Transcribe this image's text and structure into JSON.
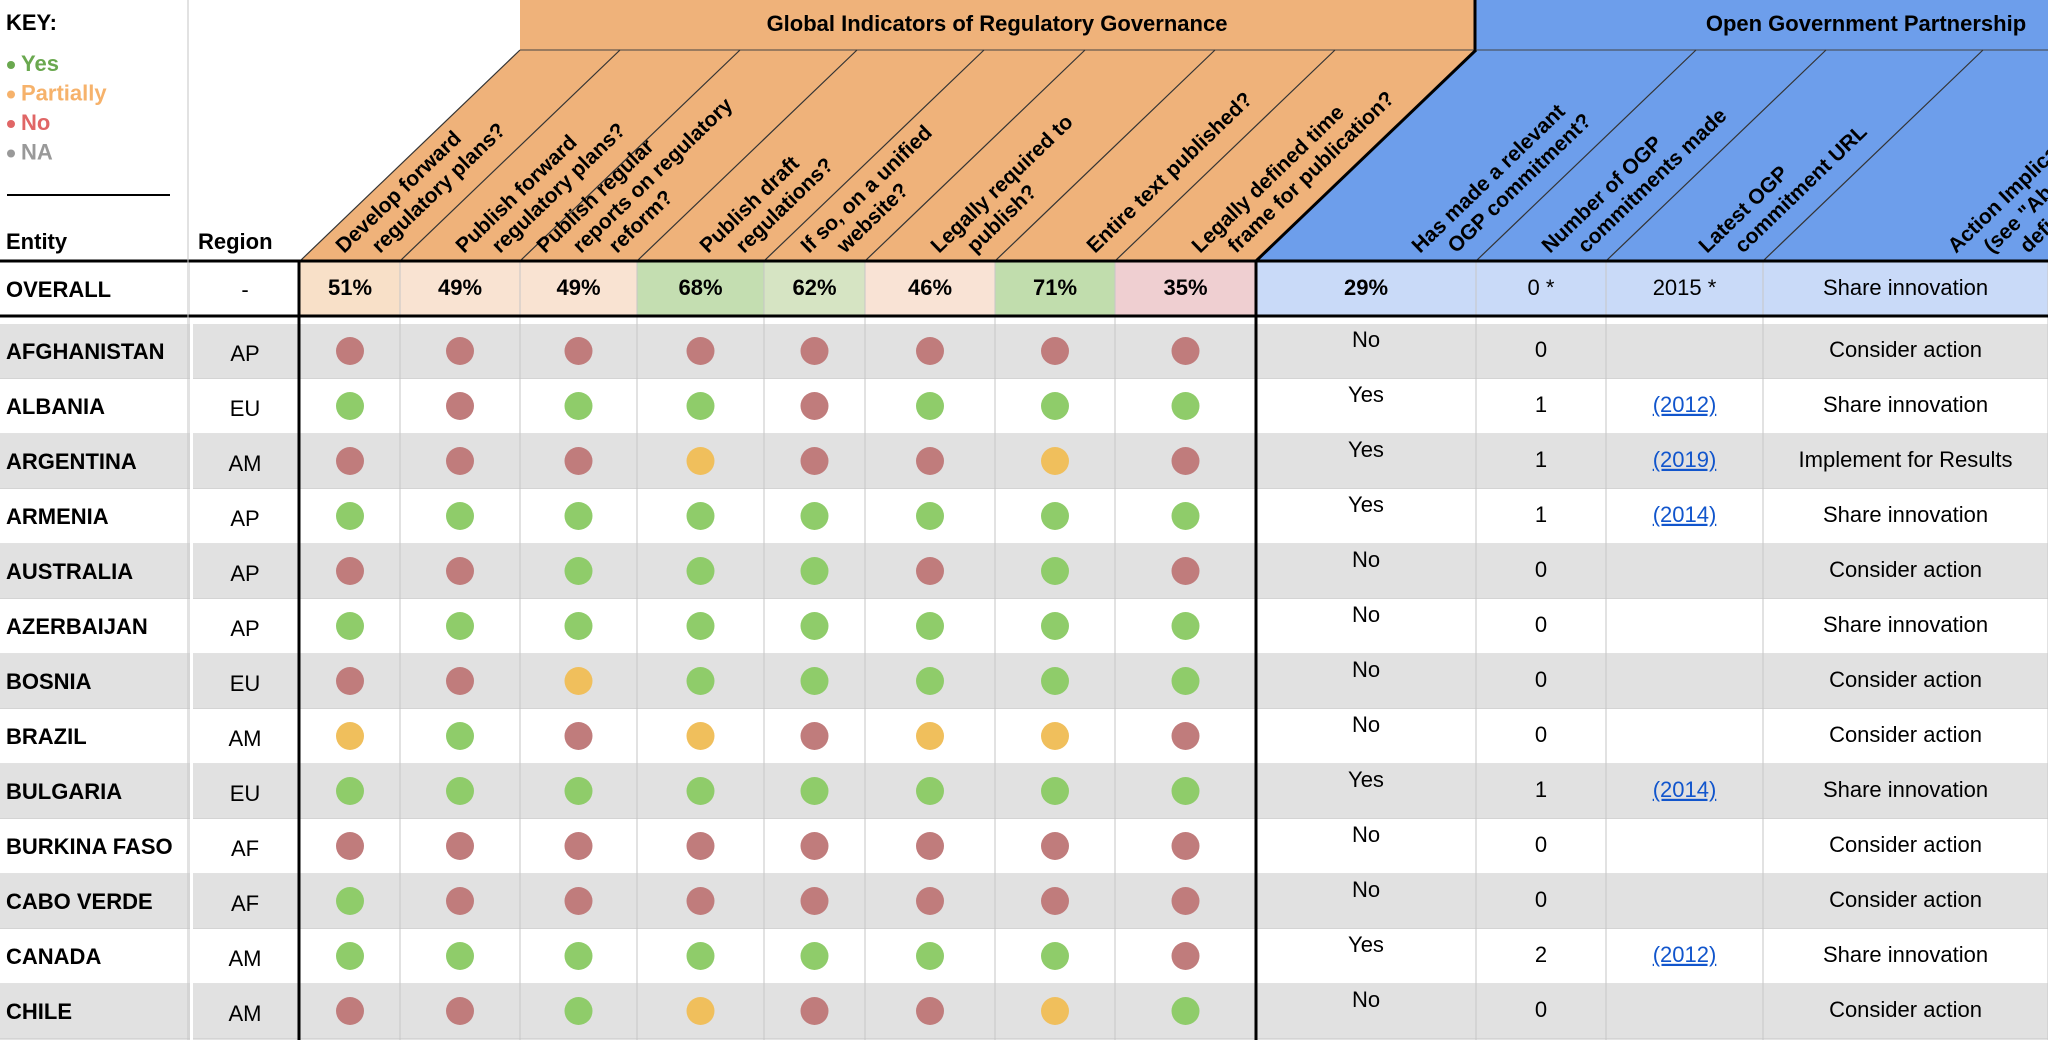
{
  "key": {
    "title": "KEY:",
    "items": [
      "Yes",
      "Partially",
      "No",
      "NA"
    ]
  },
  "status_colors": {
    "Yes": "#8fcc6a",
    "Partially": "#f0bf5c",
    "No": "#c07c7c"
  },
  "groups": [
    "Global Indicators of Regulatory Governance",
    "Open Government Partnership"
  ],
  "headers": {
    "entity": "Entity",
    "region": "Region",
    "columns": [
      [
        "Develop forward",
        "regulatory plans?"
      ],
      [
        "Publish forward",
        "regulatory plans?"
      ],
      [
        "Publish regular",
        "reports on regulatory",
        "reform?"
      ],
      [
        "Publish draft",
        "regulations?"
      ],
      [
        "If so, on a unified",
        "website?"
      ],
      [
        "Legally required to",
        "publish?"
      ],
      [
        "Entire text published?"
      ],
      [
        "Legally defined time",
        "frame for publication?"
      ],
      [
        "Has made a relevant",
        "OGP commitment?"
      ],
      [
        "Number of OGP",
        "commitments made"
      ],
      [
        "Latest OGP",
        "commitment URL"
      ],
      [
        "Action Implication",
        "(see \"About\" tab for",
        "definitions)"
      ]
    ]
  },
  "overall": {
    "entity": "OVERALL",
    "region": "-",
    "values": [
      "51%",
      "49%",
      "49%",
      "68%",
      "62%",
      "46%",
      "71%",
      "35%",
      "29%",
      "0 *",
      "2015 *",
      "Share innovation"
    ]
  },
  "rows": [
    {
      "entity": "AFGHANISTAN",
      "region": "AP",
      "indicators": [
        "No",
        "No",
        "No",
        "No",
        "No",
        "No",
        "No",
        "No"
      ],
      "ogp": [
        "No",
        0,
        null,
        "Consider action"
      ]
    },
    {
      "entity": "ALBANIA",
      "region": "EU",
      "indicators": [
        "Yes",
        "No",
        "Yes",
        "Yes",
        "No",
        "Yes",
        "Yes",
        "Yes"
      ],
      "ogp": [
        "Yes",
        1,
        "(2012)",
        "Share innovation"
      ]
    },
    {
      "entity": "ARGENTINA",
      "region": "AM",
      "indicators": [
        "No",
        "No",
        "No",
        "Partially",
        "No",
        "No",
        "Partially",
        "No"
      ],
      "ogp": [
        "Yes",
        1,
        "(2019)",
        "Implement for Results"
      ]
    },
    {
      "entity": "ARMENIA",
      "region": "AP",
      "indicators": [
        "Yes",
        "Yes",
        "Yes",
        "Yes",
        "Yes",
        "Yes",
        "Yes",
        "Yes"
      ],
      "ogp": [
        "Yes",
        1,
        "(2014)",
        "Share innovation"
      ]
    },
    {
      "entity": "AUSTRALIA",
      "region": "AP",
      "indicators": [
        "No",
        "No",
        "Yes",
        "Yes",
        "Yes",
        "No",
        "Yes",
        "No"
      ],
      "ogp": [
        "No",
        0,
        null,
        "Consider action"
      ]
    },
    {
      "entity": "AZERBAIJAN",
      "region": "AP",
      "indicators": [
        "Yes",
        "Yes",
        "Yes",
        "Yes",
        "Yes",
        "Yes",
        "Yes",
        "Yes"
      ],
      "ogp": [
        "No",
        0,
        null,
        "Share innovation"
      ]
    },
    {
      "entity": "BOSNIA",
      "region": "EU",
      "indicators": [
        "No",
        "No",
        "Partially",
        "Yes",
        "Yes",
        "Yes",
        "Yes",
        "Yes"
      ],
      "ogp": [
        "No",
        0,
        null,
        "Consider action"
      ]
    },
    {
      "entity": "BRAZIL",
      "region": "AM",
      "indicators": [
        "Partially",
        "Yes",
        "No",
        "Partially",
        "No",
        "Partially",
        "Partially",
        "No"
      ],
      "ogp": [
        "No",
        0,
        null,
        "Consider action"
      ]
    },
    {
      "entity": "BULGARIA",
      "region": "EU",
      "indicators": [
        "Yes",
        "Yes",
        "Yes",
        "Yes",
        "Yes",
        "Yes",
        "Yes",
        "Yes"
      ],
      "ogp": [
        "Yes",
        1,
        "(2014)",
        "Share innovation"
      ]
    },
    {
      "entity": "BURKINA FASO",
      "region": "AF",
      "indicators": [
        "No",
        "No",
        "No",
        "No",
        "No",
        "No",
        "No",
        "No"
      ],
      "ogp": [
        "No",
        0,
        null,
        "Consider action"
      ]
    },
    {
      "entity": "CABO VERDE",
      "region": "AF",
      "indicators": [
        "Yes",
        "No",
        "No",
        "No",
        "No",
        "No",
        "No",
        "No"
      ],
      "ogp": [
        "No",
        0,
        null,
        "Consider action"
      ]
    },
    {
      "entity": "CANADA",
      "region": "AM",
      "indicators": [
        "Yes",
        "Yes",
        "Yes",
        "Yes",
        "Yes",
        "Yes",
        "Yes",
        "No"
      ],
      "ogp": [
        "Yes",
        2,
        "(2012)",
        "Share innovation"
      ]
    },
    {
      "entity": "CHILE",
      "region": "AM",
      "indicators": [
        "No",
        "No",
        "Yes",
        "Partially",
        "No",
        "No",
        "Partially",
        "Yes"
      ],
      "ogp": [
        "No",
        0,
        null,
        "Consider action"
      ]
    }
  ]
}
